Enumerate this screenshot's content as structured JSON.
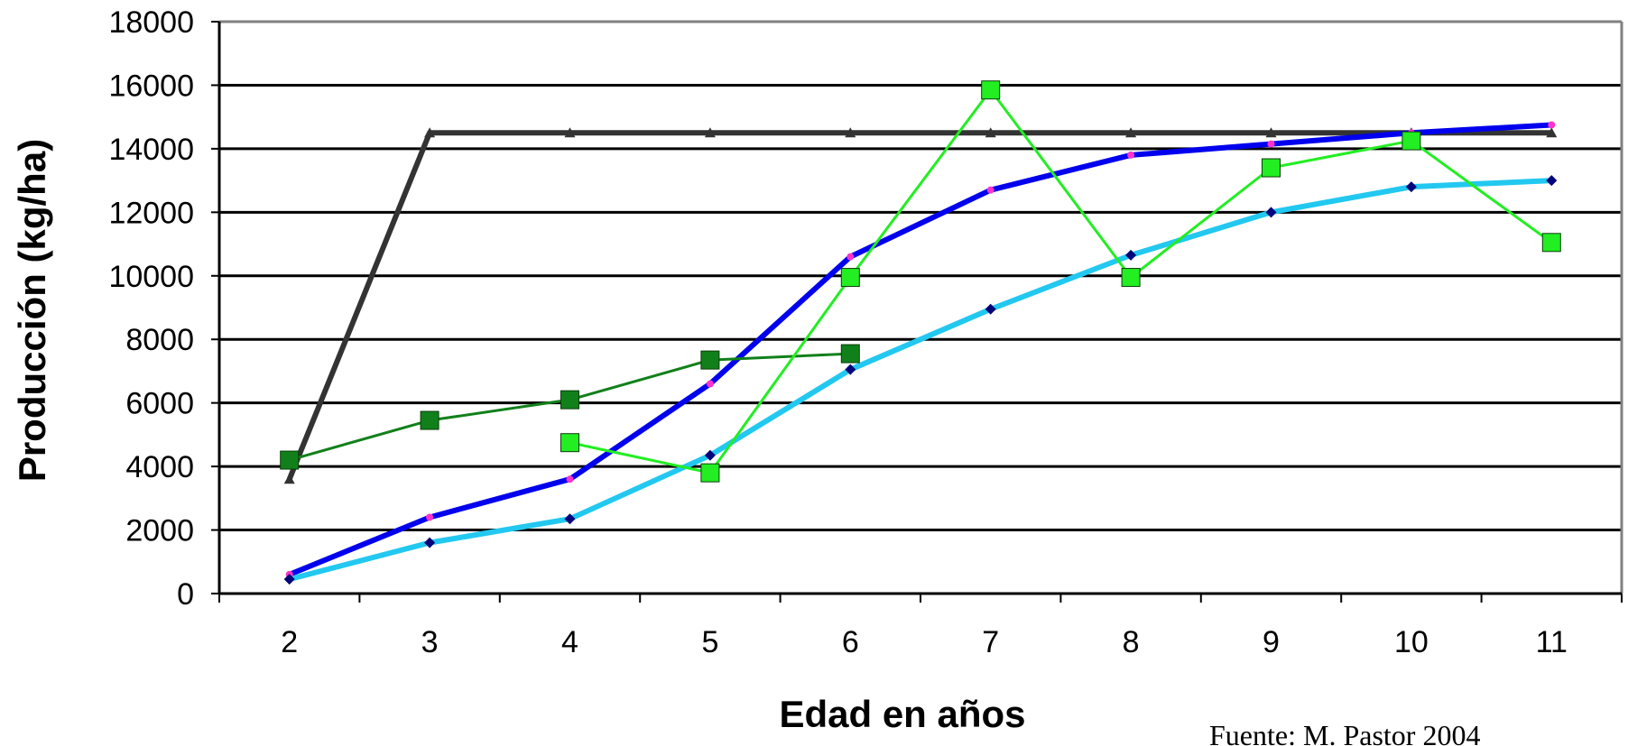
{
  "chart_data": {
    "type": "line",
    "title": "",
    "xlabel": "Edad en años",
    "ylabel": "Producción (kg/ha)",
    "source_note": "Fuente: M. Pastor 2004",
    "categories": [
      "2",
      "3",
      "4",
      "5",
      "6",
      "7",
      "8",
      "9",
      "10",
      "11"
    ],
    "x": [
      2,
      3,
      4,
      5,
      6,
      7,
      8,
      9,
      10,
      11
    ],
    "ylim": [
      0,
      18000
    ],
    "yticks": [
      0,
      2000,
      4000,
      6000,
      8000,
      10000,
      12000,
      14000,
      16000,
      18000
    ],
    "grid": true,
    "legend": "none",
    "series": [
      {
        "color": "#333333",
        "marker": "triangle",
        "line_width": "thick",
        "points": [
          [
            2,
            3600
          ],
          [
            3,
            14500
          ],
          [
            4,
            14500
          ],
          [
            5,
            14500
          ],
          [
            6,
            14500
          ],
          [
            7,
            14500
          ],
          [
            8,
            14500
          ],
          [
            9,
            14500
          ],
          [
            10,
            14500
          ],
          [
            11,
            14500
          ]
        ]
      },
      {
        "color": "#0000ee",
        "marker": "dot",
        "marker_color": "#ff33cc",
        "line_width": "thick",
        "points": [
          [
            2,
            600
          ],
          [
            3,
            2400
          ],
          [
            4,
            3600
          ],
          [
            5,
            6600
          ],
          [
            6,
            10600
          ],
          [
            7,
            12700
          ],
          [
            8,
            13800
          ],
          [
            9,
            14150
          ],
          [
            10,
            14500
          ],
          [
            11,
            14750
          ]
        ]
      },
      {
        "color": "#22c8f0",
        "marker": "diamond",
        "marker_color": "#00007a",
        "line_width": "thick",
        "points": [
          [
            2,
            450
          ],
          [
            3,
            1600
          ],
          [
            4,
            2350
          ],
          [
            5,
            4350
          ],
          [
            6,
            7050
          ],
          [
            7,
            8950
          ],
          [
            8,
            10650
          ],
          [
            9,
            12000
          ],
          [
            10,
            12800
          ],
          [
            11,
            13000
          ]
        ]
      },
      {
        "color": "#11801a",
        "marker": "square",
        "marker_color": "#11801a",
        "line_width": "thin",
        "points": [
          [
            2,
            4200
          ],
          [
            3,
            5450
          ],
          [
            4,
            6100
          ],
          [
            5,
            7350
          ],
          [
            6,
            7550
          ]
        ]
      },
      {
        "color": "#22ee22",
        "marker": "square",
        "marker_color": "#22ee22",
        "line_width": "thin",
        "points": [
          [
            4,
            4750
          ],
          [
            5,
            3800
          ],
          [
            6,
            9950
          ],
          [
            7,
            15850
          ],
          [
            8,
            9950
          ],
          [
            9,
            13400
          ],
          [
            10,
            14250
          ],
          [
            11,
            11050
          ]
        ]
      }
    ]
  }
}
